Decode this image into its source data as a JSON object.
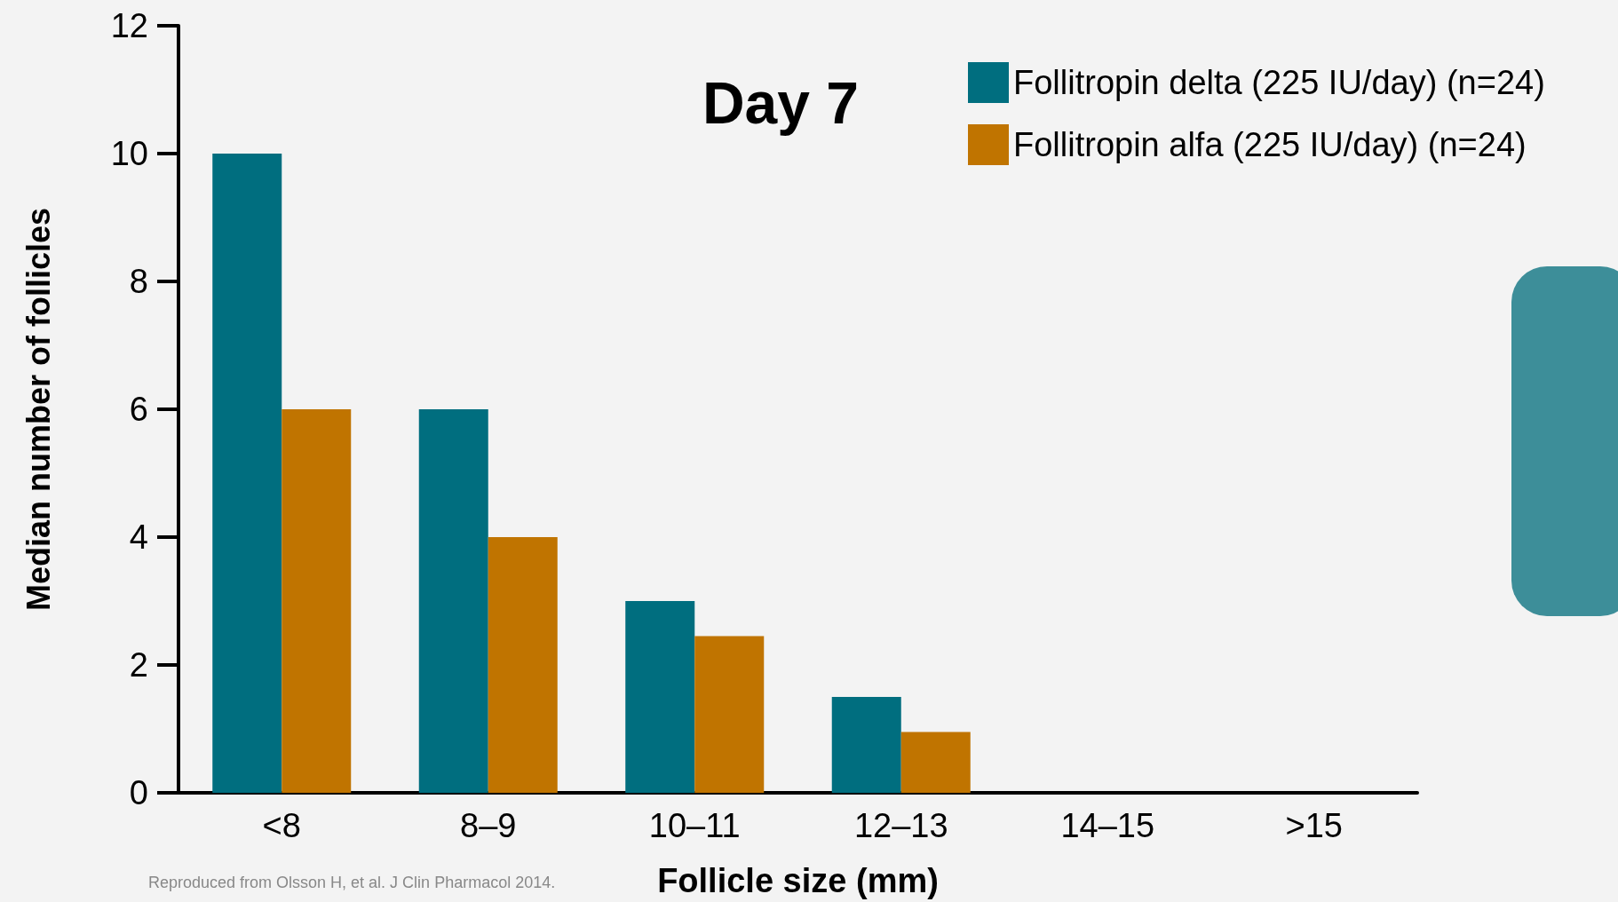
{
  "chart_data": {
    "type": "bar",
    "title": "Day 7",
    "xlabel": "Follicle size (mm)",
    "ylabel": "Median number of follicles",
    "categories": [
      "<8",
      "8–9",
      "10–11",
      "12–13",
      "14–15",
      ">15"
    ],
    "series": [
      {
        "name": "Follitropin delta (225 IU/day) (n=24)",
        "color": "#006e7f",
        "values": [
          10,
          6,
          3,
          1.5,
          0,
          0
        ]
      },
      {
        "name": "Follitropin alfa (225 IU/day) (n=24)",
        "color": "#c07400",
        "values": [
          6,
          4,
          2.45,
          0.95,
          0,
          0
        ]
      }
    ],
    "ylim": [
      0,
      12
    ],
    "yticks": [
      0,
      2,
      4,
      6,
      8,
      10,
      12
    ],
    "grid": false,
    "legend": "top right",
    "annotations": [
      "Reproduced from Olsson H, et al. J Clin Pharmacol 2014."
    ]
  }
}
